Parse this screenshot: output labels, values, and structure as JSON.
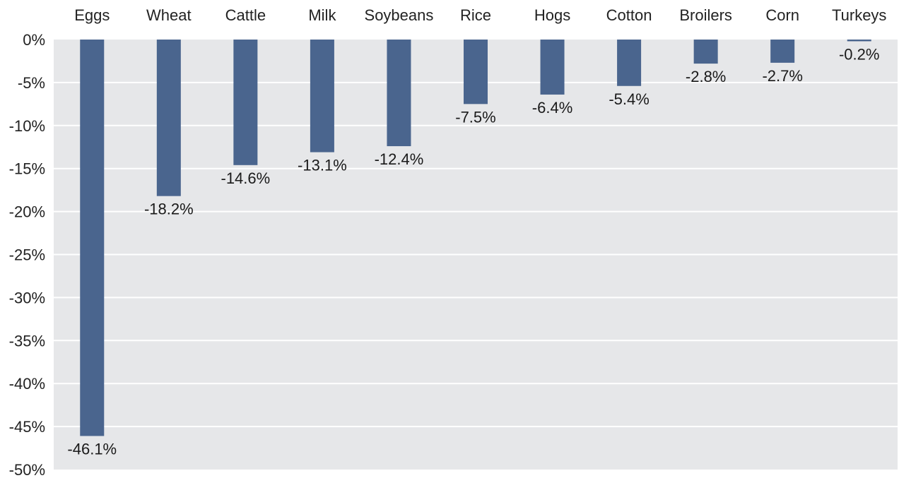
{
  "chart_data": {
    "type": "bar",
    "categories": [
      "Eggs",
      "Wheat",
      "Cattle",
      "Milk",
      "Soybeans",
      "Rice",
      "Hogs",
      "Cotton",
      "Broilers",
      "Corn",
      "Turkeys"
    ],
    "values": [
      -46.1,
      -18.2,
      -14.6,
      -13.1,
      -12.4,
      -7.5,
      -6.4,
      -5.4,
      -2.8,
      -2.7,
      -0.2
    ],
    "data_labels": [
      "-46.1%",
      "-18.2%",
      "-14.6%",
      "-13.1%",
      "-12.4%",
      "-7.5%",
      "-6.4%",
      "-5.4%",
      "-2.8%",
      "-2.7%",
      "-0.2%"
    ],
    "y_ticks": [
      0,
      -5,
      -10,
      -15,
      -20,
      -25,
      -30,
      -35,
      -40,
      -45,
      -50
    ],
    "y_tick_labels": [
      "0%",
      "-5%",
      "-10%",
      "-15%",
      "-20%",
      "-25%",
      "-30%",
      "-35%",
      "-40%",
      "-45%",
      "-50%"
    ],
    "ylim": [
      -50,
      0
    ],
    "category_axis_position": "top",
    "grid": true,
    "legend": "none",
    "colors": {
      "bar": "#4a658e",
      "plot_background": "#e6e7e9",
      "gridline": "#ffffff"
    }
  }
}
